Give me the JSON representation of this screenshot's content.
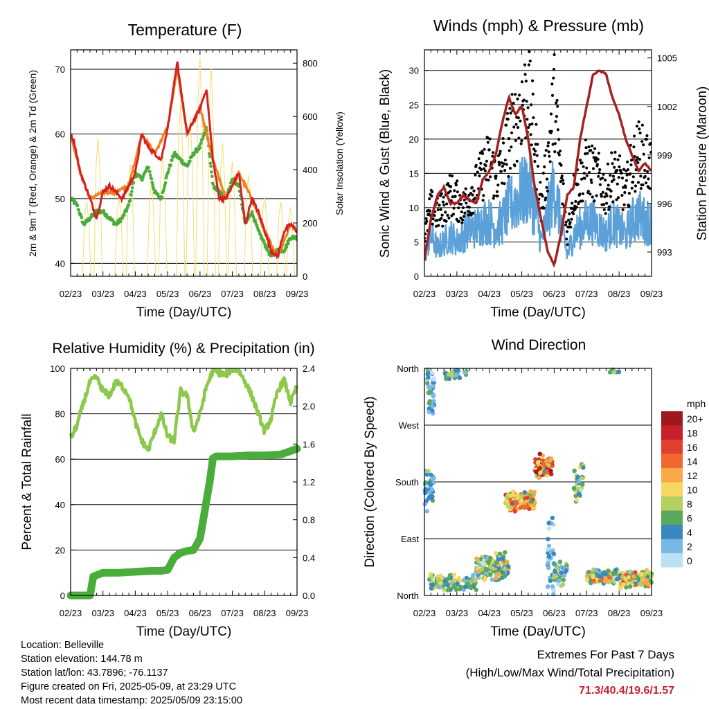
{
  "chart_data": [
    {
      "type": "line",
      "title": "Temperature (F)",
      "xlabel": "Time (Day/UTC)",
      "ylabel": "2m & 9m T (Red, Orange) & 2m Td (Green)",
      "y2label": "Solar Insolation (Yellow)",
      "x_ticks": [
        "02/23",
        "03/23",
        "04/23",
        "05/23",
        "06/23",
        "07/23",
        "08/23",
        "09/23"
      ],
      "ylim": [
        38,
        73
      ],
      "yticks": [
        40,
        50,
        60,
        70
      ],
      "y2lim": [
        0,
        850
      ],
      "y2ticks": [
        0,
        200,
        400,
        600,
        800
      ],
      "grid": true,
      "series": [
        {
          "name": "2m T",
          "color": "#d42020",
          "x": [
            0,
            0.1,
            0.3,
            0.6,
            0.8,
            1,
            1.2,
            1.4,
            1.6,
            1.8,
            2,
            2.2,
            2.4,
            2.6,
            2.8,
            3,
            3.3,
            3.6,
            3.8,
            4,
            4.2,
            4.4,
            4.6,
            4.8,
            5,
            5.2,
            5.4,
            5.6,
            5.8,
            6,
            6.2,
            6.4,
            6.6,
            6.8,
            7
          ],
          "values": [
            60,
            59,
            54,
            50,
            47,
            51,
            52,
            51,
            50,
            52,
            54,
            60,
            58,
            57,
            56,
            61,
            71,
            60,
            62,
            64,
            67,
            56,
            50,
            50,
            52,
            54,
            46,
            50,
            48,
            45,
            42,
            41,
            45,
            46,
            45
          ]
        },
        {
          "name": "9m T",
          "color": "#f08020",
          "x": [
            0,
            0.3,
            0.6,
            1,
            1.4,
            1.8,
            2.2,
            2.6,
            3,
            3.3,
            3.6,
            4,
            4.4,
            4.8,
            5.2,
            5.6,
            6,
            6.4,
            6.8,
            7
          ],
          "values": [
            60,
            54,
            50,
            51,
            51,
            52,
            60,
            57,
            61,
            70,
            60,
            64,
            56,
            50,
            54,
            50,
            45,
            41,
            46,
            45
          ]
        },
        {
          "name": "2m Td",
          "color": "#4aac3a",
          "x": [
            0,
            0.2,
            0.4,
            0.6,
            0.8,
            1,
            1.2,
            1.4,
            1.6,
            1.8,
            2,
            2.2,
            2.4,
            2.6,
            2.8,
            3,
            3.2,
            3.4,
            3.6,
            3.8,
            4,
            4.2,
            4.4,
            4.6,
            4.8,
            5,
            5.2,
            5.4,
            5.6,
            5.8,
            6,
            6.2,
            6.4,
            6.6,
            6.8,
            7
          ],
          "values": [
            50,
            49,
            46,
            47,
            48,
            48,
            47,
            46,
            47,
            49,
            54,
            53,
            55,
            51,
            50,
            54,
            57,
            56,
            55,
            57,
            58,
            61,
            52,
            51,
            50,
            53,
            52,
            46,
            48,
            45,
            43,
            41,
            42,
            42,
            44,
            44
          ]
        },
        {
          "name": "Solar Insolation",
          "color": "#f6dd70",
          "axis": "y2",
          "x": [
            0.5,
            0.85,
            1.5,
            1.85,
            2.5,
            2.85,
            3.4,
            3.7,
            4.0,
            4.35,
            4.7,
            5.0,
            5.5,
            6.0,
            6.5,
            6.8
          ],
          "values": [
            280,
            520,
            300,
            420,
            350,
            460,
            650,
            600,
            820,
            780,
            500,
            430,
            380,
            300,
            280,
            260
          ]
        }
      ]
    },
    {
      "type": "scatter",
      "title": "Winds (mph) & Pressure (mb)",
      "xlabel": "Time (Day/UTC)",
      "ylabel": "Sonic Wind & Gust (Blue, Black)",
      "y2label": "Station Pressure (Maroon)",
      "x_ticks": [
        "02/23",
        "03/23",
        "04/23",
        "05/23",
        "06/23",
        "07/23",
        "08/23",
        "09/23"
      ],
      "ylim": [
        0,
        33
      ],
      "yticks": [
        0,
        5,
        10,
        15,
        20,
        25,
        30
      ],
      "y2lim": [
        991.5,
        1005.5
      ],
      "y2ticks": [
        993,
        996,
        999,
        1002,
        1005
      ],
      "grid": true,
      "series": [
        {
          "name": "Station Pressure",
          "color": "#a52020",
          "axis": "y2",
          "x": [
            0,
            0.2,
            0.4,
            0.6,
            0.8,
            1,
            1.2,
            1.4,
            1.6,
            1.8,
            2,
            2.2,
            2.4,
            2.6,
            2.8,
            3,
            3.2,
            3.4,
            3.6,
            3.8,
            4,
            4.2,
            4.4,
            4.6,
            4.8,
            5,
            5.2,
            5.4,
            5.6,
            5.8,
            6,
            6.2,
            6.4,
            6.6,
            6.8,
            7
          ],
          "values": [
            992.5,
            995,
            996.5,
            997,
            996,
            996,
            996.5,
            996.2,
            996,
            997.5,
            998,
            999,
            1001,
            1002.6,
            1001.5,
            1002,
            1000,
            997,
            995,
            993,
            992.2,
            994,
            996.5,
            997,
            1000,
            1002,
            1004,
            1004.2,
            1004,
            1002.5,
            1001.5,
            1000,
            999,
            998,
            998.5,
            998
          ]
        },
        {
          "name": "Sonic Wind",
          "color": "#5ba0d8",
          "x": [
            0,
            0.2,
            0.4,
            0.6,
            0.8,
            1,
            1.2,
            1.4,
            1.6,
            1.8,
            2,
            2.2,
            2.4,
            2.6,
            2.8,
            3,
            3.2,
            3.4,
            3.6,
            3.8,
            4,
            4.2,
            4.4,
            4.6,
            4.8,
            5,
            5.2,
            5.4,
            5.6,
            5.8,
            6,
            6.2,
            6.4,
            6.6,
            6.8,
            7
          ],
          "values": [
            3,
            6,
            4,
            5,
            6,
            5,
            6,
            7,
            7,
            8,
            8,
            7,
            8,
            10,
            11,
            12,
            13,
            10,
            5,
            9,
            13,
            8,
            3,
            6,
            7,
            8,
            8,
            7,
            6,
            8,
            7,
            6,
            8,
            9,
            8,
            8
          ]
        },
        {
          "name": "Gust",
          "color": "#000000",
          "x": [
            0,
            0.2,
            0.4,
            0.6,
            0.8,
            1,
            1.2,
            1.4,
            1.6,
            1.8,
            2,
            2.2,
            2.4,
            2.6,
            2.8,
            3,
            3.2,
            3.4,
            3.6,
            3.8,
            4,
            4.2,
            4.4,
            4.6,
            4.8,
            5,
            5.2,
            5.4,
            5.6,
            5.8,
            6,
            6.2,
            6.4,
            6.6,
            6.8,
            7
          ],
          "values": [
            6,
            10,
            9,
            10,
            12,
            11,
            10,
            12,
            13,
            15,
            17,
            14,
            16,
            20,
            22,
            25,
            27,
            20,
            10,
            17,
            26,
            15,
            6,
            12,
            14,
            16,
            15,
            14,
            12,
            15,
            14,
            12,
            16,
            18,
            17,
            16
          ]
        }
      ]
    },
    {
      "type": "line",
      "title": "Relative Humidity (%) & Precipitation (in)",
      "xlabel": "Time (Day/UTC)",
      "ylabel": "Percent & Total Rainfall",
      "x_ticks": [
        "02/23",
        "03/23",
        "04/23",
        "05/23",
        "06/23",
        "07/23",
        "08/23",
        "09/23"
      ],
      "ylim": [
        0,
        100
      ],
      "yticks": [
        0,
        20,
        40,
        60,
        80,
        100
      ],
      "y2lim": [
        0,
        2.4
      ],
      "y2ticks": [
        0.0,
        0.4,
        0.8,
        1.2,
        1.6,
        2.0,
        2.4
      ],
      "grid": true,
      "series": [
        {
          "name": "Relative Humidity",
          "color": "#8cc84a",
          "x": [
            0,
            0.2,
            0.4,
            0.6,
            0.8,
            1,
            1.2,
            1.4,
            1.6,
            1.8,
            2,
            2.2,
            2.4,
            2.6,
            2.8,
            3,
            3.2,
            3.4,
            3.6,
            3.8,
            4,
            4.2,
            4.4,
            4.6,
            4.8,
            5,
            5.2,
            5.4,
            5.6,
            5.8,
            6,
            6.2,
            6.4,
            6.6,
            6.8,
            7
          ],
          "values": [
            69,
            75,
            85,
            94,
            96,
            90,
            88,
            94,
            92,
            88,
            76,
            68,
            64,
            72,
            80,
            70,
            68,
            90,
            88,
            72,
            80,
            92,
            99,
            98,
            97,
            100,
            99,
            94,
            88,
            80,
            72,
            78,
            90,
            95,
            85,
            92
          ]
        },
        {
          "name": "Total Rainfall",
          "color": "#4aac3a",
          "axis": "y2",
          "x": [
            0,
            0.4,
            0.6,
            0.7,
            1,
            1.5,
            2,
            2.5,
            2.8,
            3,
            3.2,
            3.4,
            3.6,
            3.8,
            4,
            4.1,
            4.2,
            4.3,
            4.4,
            4.5,
            5,
            5.5,
            6,
            6.5,
            7
          ],
          "values": [
            0,
            0,
            0,
            0.2,
            0.24,
            0.24,
            0.25,
            0.26,
            0.26,
            0.27,
            0.4,
            0.45,
            0.47,
            0.48,
            0.6,
            0.8,
            1.0,
            1.2,
            1.45,
            1.47,
            1.47,
            1.48,
            1.48,
            1.49,
            1.55
          ]
        }
      ]
    },
    {
      "type": "scatter",
      "title": "Wind Direction",
      "xlabel": "Time (Day/UTC)",
      "ylabel": "Direction (Colored By Speed)",
      "x_ticks": [
        "02/23",
        "03/23",
        "04/23",
        "05/23",
        "06/23",
        "07/23",
        "08/23",
        "09/23"
      ],
      "y_ticks": [
        "North",
        "East",
        "South",
        "West",
        "North"
      ],
      "grid": true,
      "colorbar": {
        "unit": "mph",
        "labels": [
          "20+",
          "18",
          "16",
          "14",
          "12",
          "10",
          "8",
          "6",
          "4",
          "2",
          "0"
        ],
        "colors": [
          "#9c1a1e",
          "#c8202a",
          "#e0402e",
          "#f06830",
          "#f8a848",
          "#f4d860",
          "#b4d060",
          "#5aa860",
          "#3a88c0",
          "#7ab8e4",
          "#bce0f6"
        ]
      }
    }
  ],
  "info": {
    "location": "Location: Belleville",
    "elevation": "Station elevation: 144.78 m",
    "latlon": "Station lat/lon: 43.7896; -76.1137",
    "created": "Figure created on Fri, 2025-05-09, at 23:29 UTC",
    "timestamp": "Most recent data timestamp: 2025/05/09 23:15:00"
  },
  "extremes": {
    "title": "Extremes For Past 7 Days",
    "subtitle": "(High/Low/Max Wind/Total Precipitation)",
    "values": "71.3/40.4/19.6/1.57"
  }
}
